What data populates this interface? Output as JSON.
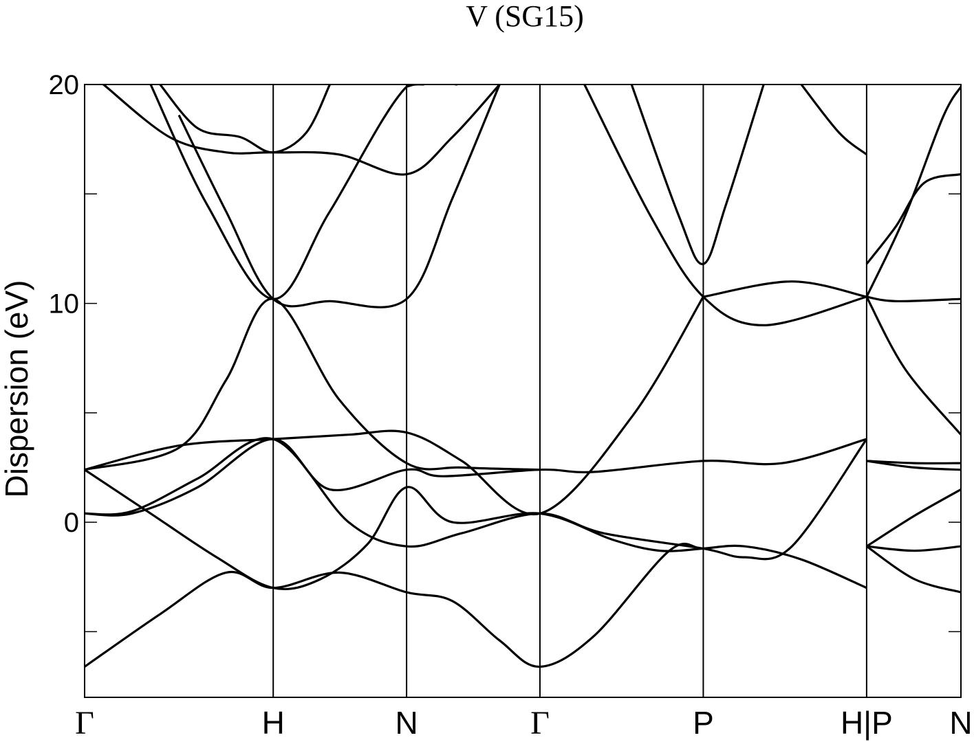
{
  "chart_data": {
    "type": "line",
    "title": "V (SG15)",
    "ylabel": "Dispersion (eV)",
    "xlabel": "",
    "ylim": [
      -8,
      20
    ],
    "yticks": [
      0,
      10,
      20
    ],
    "yminor_ticks": [
      -5,
      5,
      15
    ],
    "grid": false,
    "legend": "none",
    "line_color": "#000000",
    "k_points": [
      {
        "label": "Γ",
        "x": 0.0
      },
      {
        "label": "H",
        "x": 2.0
      },
      {
        "label": "N",
        "x": 3.414
      },
      {
        "label": "Γ",
        "x": 4.828
      },
      {
        "label": "P",
        "x": 6.56
      },
      {
        "label": "H|P",
        "x": 8.292
      },
      {
        "label": "N",
        "x": 9.292
      }
    ],
    "series": [
      {
        "x": [
          0.0,
          0.8,
          1.5,
          2.0,
          2.7,
          3.414,
          3.9,
          4.4,
          4.828,
          5.4,
          6.2,
          6.56,
          7.0,
          7.6,
          8.292
        ],
        "y": [
          -6.6,
          -4.2,
          -2.3,
          -3.0,
          -2.3,
          -3.2,
          -3.6,
          -5.4,
          -6.6,
          -5.2,
          -1.3,
          -1.2,
          -1.1,
          -1.7,
          -3.0
        ]
      },
      {
        "x": [
          0.0,
          0.7,
          1.4,
          2.0,
          2.5,
          3.0,
          3.414,
          3.9,
          4.828,
          5.6,
          6.1,
          6.56
        ],
        "y": [
          2.4,
          0.4,
          -1.6,
          -3.0,
          -2.6,
          -1.0,
          1.6,
          0.0,
          0.4,
          -0.8,
          -1.3,
          -1.2
        ]
      },
      {
        "x": [
          0.0,
          0.5,
          1.2,
          2.0,
          2.8,
          3.414,
          4.0,
          4.828,
          5.5,
          6.56,
          7.0,
          7.5,
          8.292
        ],
        "y": [
          0.4,
          0.5,
          2.0,
          3.8,
          0.0,
          -1.1,
          -0.5,
          0.4,
          -0.5,
          -1.2,
          -1.6,
          -1.1,
          3.8
        ]
      },
      {
        "x": [
          0.0,
          0.5,
          1.2,
          2.0,
          2.6,
          3.414,
          3.8,
          4.828,
          5.4,
          6.56,
          7.4,
          8.292
        ],
        "y": [
          0.4,
          0.4,
          1.6,
          3.8,
          1.5,
          2.4,
          2.1,
          2.4,
          2.3,
          2.8,
          2.7,
          3.8
        ]
      },
      {
        "x": [
          0.0,
          1.0,
          2.0,
          2.8,
          3.414,
          4.0,
          4.828,
          5.8,
          6.56
        ],
        "y": [
          2.4,
          3.5,
          3.8,
          4.0,
          4.1,
          2.8,
          0.4,
          4.8,
          10.3
        ]
      },
      {
        "x": [
          0.0,
          1.0,
          1.5,
          2.0,
          2.7,
          3.414,
          4.0,
          4.828
        ],
        "y": [
          2.4,
          3.4,
          6.5,
          10.2,
          5.6,
          2.7,
          2.5,
          2.4
        ]
      },
      {
        "x": [
          1.0,
          1.5,
          2.0,
          2.6,
          3.414,
          3.9,
          4.4
        ],
        "y": [
          18.6,
          14.2,
          10.2,
          10.1,
          10.2,
          14.8,
          20.0
        ]
      },
      {
        "x": [
          0.7,
          1.3,
          2.0,
          2.6,
          3.414,
          3.95
        ],
        "y": [
          20.0,
          14.5,
          10.2,
          14.2,
          19.9,
          20.0
        ]
      },
      {
        "x": [
          0.2,
          0.9,
          1.5,
          2.0,
          2.7,
          3.414,
          3.9,
          4.4
        ],
        "y": [
          20.0,
          17.6,
          16.9,
          16.9,
          16.8,
          15.9,
          17.6,
          20.0
        ]
      },
      {
        "x": [
          0.8,
          1.2,
          1.65,
          2.0,
          2.35,
          2.6
        ],
        "y": [
          20.0,
          18.0,
          17.6,
          16.9,
          17.8,
          20.0
        ]
      },
      {
        "x": [
          3.414,
          3.5,
          3.6
        ],
        "y": [
          19.9,
          20.0,
          20.0
        ]
      },
      {
        "x": [
          5.3,
          6.0,
          6.56,
          7.2,
          8.292
        ],
        "y": [
          20.0,
          14.0,
          10.3,
          9.0,
          10.3
        ]
      },
      {
        "x": [
          5.8,
          6.3,
          6.56,
          6.8,
          7.2
        ],
        "y": [
          20.0,
          14.0,
          11.8,
          14.5,
          20.0
        ]
      },
      {
        "x": [
          6.56,
          7.5,
          8.292
        ],
        "y": [
          10.3,
          11.0,
          10.3
        ]
      },
      {
        "x": [
          7.6,
          8.0,
          8.292
        ],
        "y": [
          20.0,
          17.8,
          16.8
        ]
      },
      {
        "x": [
          8.292,
          8.6,
          8.9,
          9.292
        ],
        "y": [
          11.8,
          13.5,
          15.5,
          15.9
        ]
      },
      {
        "x": [
          8.292,
          8.7,
          9.1,
          9.292
        ],
        "y": [
          10.3,
          14.0,
          18.5,
          19.9
        ]
      },
      {
        "x": [
          8.292,
          8.6,
          9.292
        ],
        "y": [
          10.3,
          10.1,
          10.2
        ]
      },
      {
        "x": [
          8.292,
          8.7,
          9.292
        ],
        "y": [
          10.3,
          7.0,
          4.0
        ]
      },
      {
        "x": [
          8.292,
          8.8,
          9.292
        ],
        "y": [
          2.8,
          2.7,
          2.7
        ]
      },
      {
        "x": [
          8.292,
          8.8,
          9.292
        ],
        "y": [
          2.8,
          2.5,
          2.4
        ]
      },
      {
        "x": [
          8.292,
          8.8,
          9.292
        ],
        "y": [
          -1.1,
          0.3,
          1.5
        ]
      },
      {
        "x": [
          8.292,
          8.8,
          9.292
        ],
        "y": [
          -1.1,
          -1.3,
          -1.1
        ]
      },
      {
        "x": [
          8.292,
          8.8,
          9.292
        ],
        "y": [
          -1.1,
          -2.6,
          -3.2
        ]
      }
    ]
  }
}
